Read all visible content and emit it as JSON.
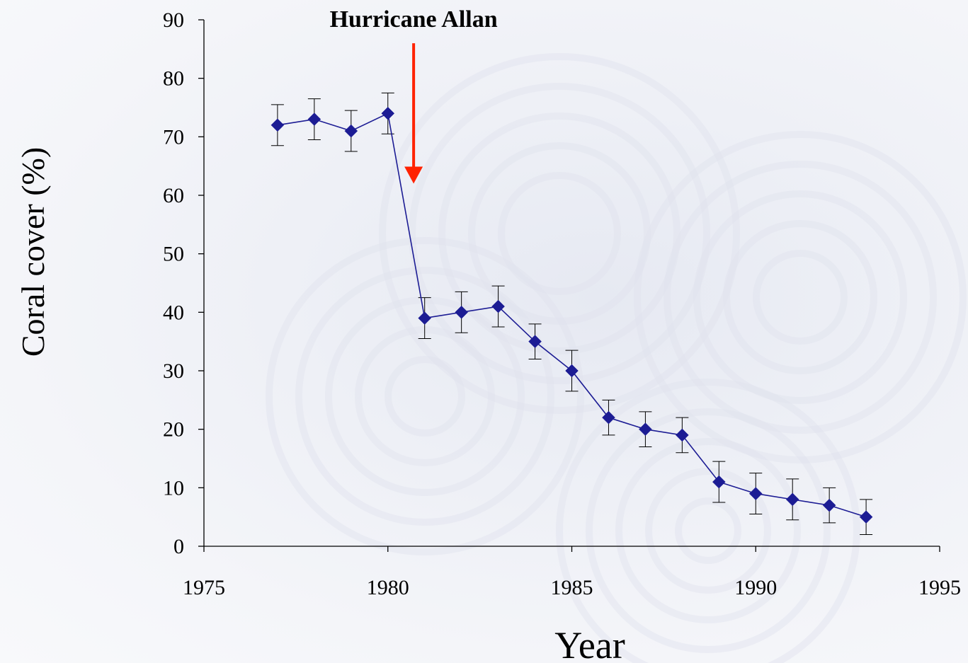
{
  "chart_data": {
    "type": "line",
    "title": "",
    "xlabel": "Year",
    "ylabel": "Coral cover (%)",
    "xlim": [
      1975,
      1995
    ],
    "ylim": [
      0,
      90
    ],
    "x_ticks": [
      "1975",
      "1980",
      "1985",
      "1990",
      "1995"
    ],
    "y_ticks": [
      "0",
      "10",
      "20",
      "30",
      "40",
      "50",
      "60",
      "70",
      "80",
      "90"
    ],
    "grid": false,
    "legend": "none",
    "series": [
      {
        "x": [
          1977,
          1978,
          1979,
          1980,
          1981,
          1982,
          1983,
          1984,
          1985,
          1986,
          1987,
          1988,
          1989,
          1990,
          1991,
          1992,
          1993
        ],
        "y": [
          72,
          73,
          71,
          74,
          39,
          40,
          41,
          35,
          30,
          22,
          20,
          19,
          11,
          9,
          8,
          7,
          5
        ],
        "error": [
          3.5,
          3.5,
          3.5,
          3.5,
          3.5,
          3.5,
          3.5,
          3.0,
          3.5,
          3.0,
          3.0,
          3.0,
          3.5,
          3.5,
          3.5,
          3.0,
          3.0
        ]
      }
    ],
    "annotations": [
      {
        "text": "Hurricane Allan",
        "arrow_x": 1980.7,
        "arrow_y_start": 86,
        "arrow_y_end": 62
      }
    ],
    "colors": {
      "series": "#1c1c94",
      "error_bars": "#000000",
      "axes": "#000000",
      "arrow": "#ff2200"
    }
  }
}
